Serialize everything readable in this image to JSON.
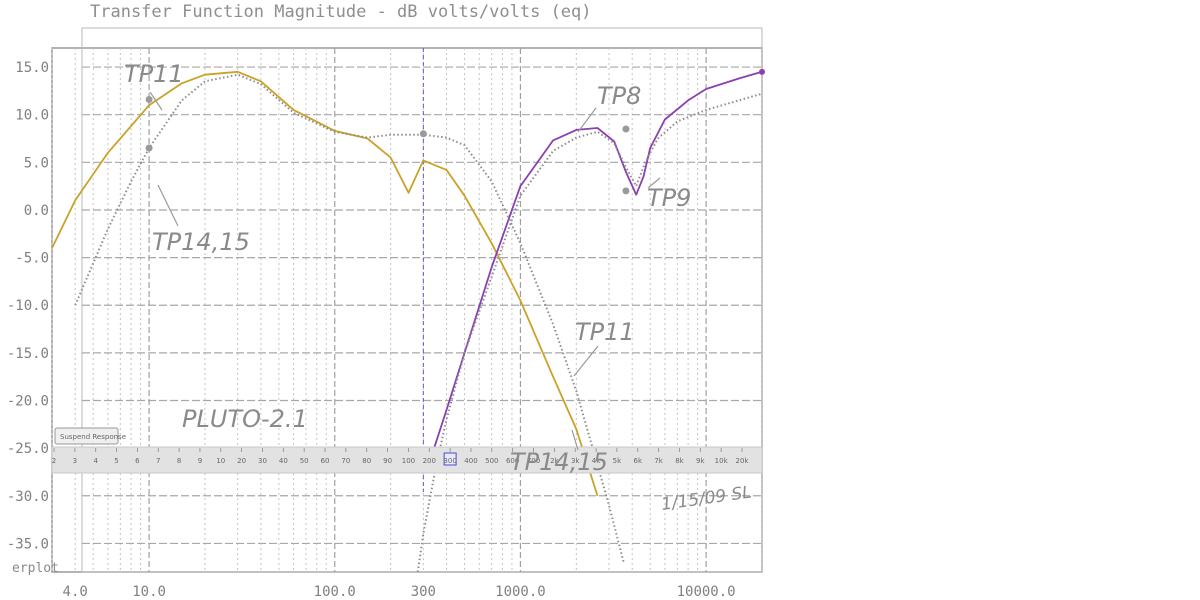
{
  "chart_data": {
    "type": "line",
    "title": "Transfer Function Magnitude - dB volts/volts (eq)",
    "x_scale": "log",
    "xlim": [
      3,
      20000
    ],
    "ylim": [
      -38,
      17
    ],
    "x_ticks": [
      "4.0",
      "10.0",
      "100.0",
      "300",
      "1000.0",
      "10000.0"
    ],
    "y_ticks": [
      "15.0",
      "10.0",
      "5.0",
      "0.0",
      "-5.0",
      "-10.0",
      "-15.0",
      "-20.0",
      "-25.0",
      "-30.0",
      "-35.0"
    ],
    "cursor_x": 300,
    "series": [
      {
        "name": "TP11",
        "color": "#c9a227",
        "style": "solid",
        "x": [
          3,
          4,
          6,
          10,
          15,
          20,
          30,
          40,
          60,
          100,
          150,
          200,
          250,
          300,
          400,
          500,
          700,
          1000,
          1500,
          2000,
          2600
        ],
        "y": [
          -4,
          1,
          6,
          11,
          13.3,
          14.2,
          14.5,
          13.5,
          10.5,
          8.3,
          7.5,
          5.5,
          1.8,
          5.2,
          4.2,
          1.5,
          -3.5,
          -9.5,
          -17.5,
          -23,
          -30
        ]
      },
      {
        "name": "TP8",
        "color": "#8b3fb0",
        "style": "solid",
        "x": [
          330,
          400,
          500,
          700,
          1000,
          1500,
          2000,
          2600,
          3200,
          3700,
          4200,
          4600,
          5000,
          6000,
          8000,
          10000,
          15000,
          20000
        ],
        "y": [
          -26,
          -21,
          -15,
          -6,
          2.5,
          7.3,
          8.4,
          8.6,
          7.2,
          4,
          1.6,
          3.5,
          6.5,
          9.5,
          11.5,
          12.7,
          13.8,
          14.5
        ]
      },
      {
        "name": "TP14,15",
        "color": "#8c8c8c",
        "style": "dotted",
        "x": [
          4,
          6,
          8,
          10,
          15,
          20,
          30,
          40,
          60,
          100,
          150,
          200,
          300,
          400,
          500,
          700,
          1000,
          1500,
          2000,
          3000,
          3600
        ],
        "y": [
          -10,
          -2,
          3,
          6.5,
          11.5,
          13.5,
          14.2,
          13.2,
          10.2,
          8.2,
          7.6,
          7.9,
          7.9,
          7.6,
          6.8,
          3,
          -3.5,
          -12,
          -19,
          -31,
          -37
        ]
      },
      {
        "name": "TP9",
        "color": "#8c8c8c",
        "style": "dotted",
        "x": [
          280,
          300,
          350,
          400,
          500,
          700,
          1000,
          1500,
          2000,
          2600,
          3200,
          3700,
          4200,
          4700,
          5500,
          7000,
          10000,
          15000,
          20000
        ],
        "y": [
          -38,
          -34,
          -27,
          -22,
          -15,
          -7,
          1.5,
          6.2,
          7.6,
          8.2,
          7,
          4.5,
          2.5,
          5,
          7.5,
          9.3,
          10.5,
          11.5,
          12.2
        ]
      }
    ],
    "markers": [
      {
        "x": 10,
        "y": 11.6
      },
      {
        "x": 10,
        "y": 6.5
      },
      {
        "x": 300,
        "y": 8
      },
      {
        "x": 3700,
        "y": 8.5
      },
      {
        "x": 3700,
        "y": 2
      }
    ]
  },
  "annotations": {
    "tp11_top": "TP11",
    "tp14_left": "TP14,15",
    "tp8": "TP8",
    "tp9": "TP9",
    "tp11_right": "TP11",
    "tp14_bottom": "TP14,15",
    "pluto": "PLUTO-2.1",
    "date": "1/15/09 SL"
  },
  "strip": {
    "label": "Suspend Response",
    "ticks": [
      "2",
      "3",
      "4",
      "5",
      "6",
      "7",
      "8",
      "9",
      "10",
      "20",
      "30",
      "40",
      "50",
      "60",
      "70",
      "80",
      "90",
      "100",
      "200",
      "300",
      "400",
      "500",
      "600",
      "700",
      "2k",
      "3k",
      "4k",
      "5k",
      "6k",
      "7k",
      "8k",
      "9k",
      "10k",
      "20k"
    ],
    "selected": "300"
  },
  "footer": {
    "left_label": "erplot"
  }
}
